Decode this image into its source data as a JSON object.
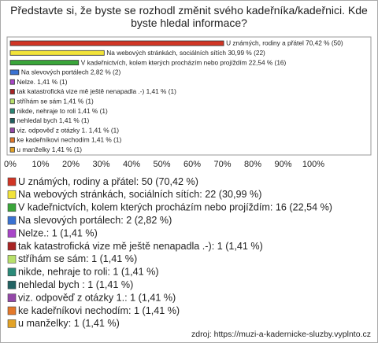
{
  "chart_data": {
    "type": "bar",
    "orientation": "horizontal",
    "title": "Představte si, že byste se rozhodl změnit svého kadeřníka/kadeřnici. Kde byste hledal informace?",
    "categories": [
      "U známých, rodiny a přátel",
      "Na webových stránkách, sociálních sítích",
      "V kadeřnictvích, kolem kterých procházím nebo projíždím",
      "Na slevových portálech",
      "Nelze.",
      "tak katastrofická vize mě ještě nenapadla .-)",
      "stříhám se sám",
      "nikde, nehraje to roli",
      "nehledal bych ",
      "viz. odpověď z otázky 1.",
      "ke kadeřníkovi nechodím",
      "u manželky"
    ],
    "values": [
      70.42,
      30.99,
      22.54,
      2.82,
      1.41,
      1.41,
      1.41,
      1.41,
      1.41,
      1.41,
      1.41,
      1.41
    ],
    "value_labels": [
      "U známých, rodiny a přátel 70,42 % (50)",
      "Na webových stránkách, sociálních sítích 30,99 % (22)",
      "V kadeřnictvích, kolem kterých procházím nebo projíždím 22,54 % (16)",
      "Na slevových portálech 2,82 % (2)",
      "Nelze. 1,41 % (1)",
      "tak katastrofická vize mě ještě nenapadla .-) 1,41 % (1)",
      "stříhám se sám 1,41 % (1)",
      "nikde, nehraje to roli 1,41 % (1)",
      "nehledal bych  1,41 % (1)",
      "viz. odpověď z otázky 1. 1,41 % (1)",
      "ke kadeřníkovi nechodím 1,41 % (1)",
      "u manželky 1,41 % (1)"
    ],
    "legend_labels": [
      "U známých, rodiny a přátel: 50 (70,42 %)",
      "Na webových stránkách, sociálních sítích: 22 (30,99 %)",
      "V kadeřnictvích, kolem kterých procházím nebo projíždím: 16 (22,54 %)",
      "Na slevových portálech: 2 (2,82 %)",
      "Nelze.: 1 (1,41 %)",
      "tak katastrofická vize mě ještě nenapadla .-): 1 (1,41 %)",
      "stříhám se sám: 1 (1,41 %)",
      "nikde, nehraje to roli: 1 (1,41 %)",
      "nehledal bych : 1 (1,41 %)",
      "viz. odpověď z otázky 1.: 1 (1,41 %)",
      "ke kadeřníkovi nechodím: 1 (1,41 %)",
      "u manželky: 1 (1,41 %)"
    ],
    "colors": [
      "#d03525",
      "#f2e33a",
      "#3aa53a",
      "#3a72d2",
      "#a845c8",
      "#a82424",
      "#b8e06a",
      "#2a8a78",
      "#216262",
      "#9448a8",
      "#e3782a",
      "#e2a226"
    ],
    "xlim": [
      0,
      100
    ],
    "xticks": [
      {
        "value": 0,
        "label": "0%"
      },
      {
        "value": 10,
        "label": "10%"
      },
      {
        "value": 20,
        "label": "20%"
      },
      {
        "value": 30,
        "label": "30%"
      },
      {
        "value": 40,
        "label": "40%"
      },
      {
        "value": 50,
        "label": "50%"
      },
      {
        "value": 60,
        "label": "60%"
      },
      {
        "value": 70,
        "label": "70%"
      },
      {
        "value": 80,
        "label": "80%"
      },
      {
        "value": 90,
        "label": "90%"
      },
      {
        "value": 100,
        "label": "100%"
      }
    ],
    "source": "zdroj: https://muzi-a-kadernicke-sluzby.vyplnto.cz"
  }
}
